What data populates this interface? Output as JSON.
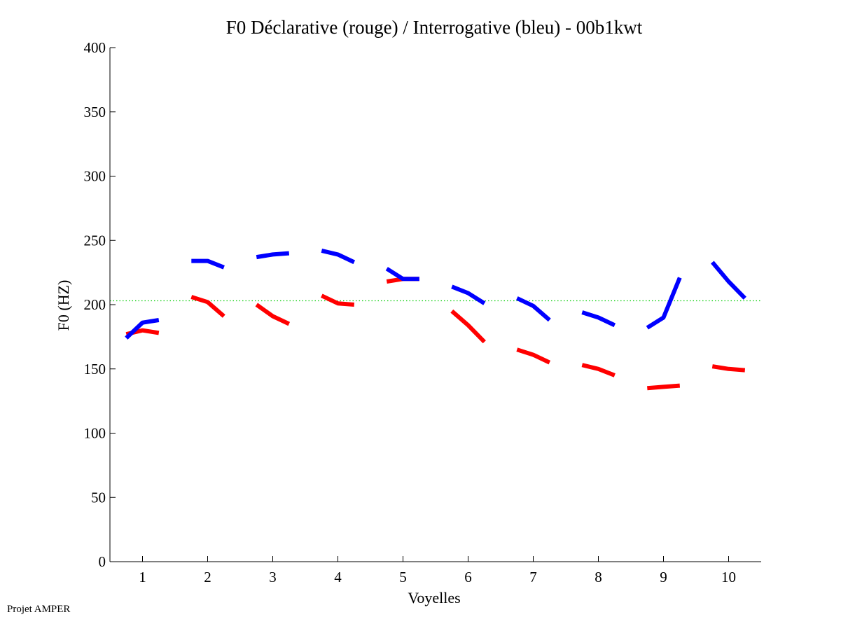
{
  "chart_data": {
    "type": "line",
    "title": "F0 Déclarative (rouge) / Interrogative (bleu) - 00b1kwt",
    "xlabel": "Voyelles",
    "ylabel": "F0 (HZ)",
    "xlim": [
      0.5,
      10.5
    ],
    "ylim": [
      0,
      400
    ],
    "xticks": [
      "1",
      "2",
      "3",
      "4",
      "5",
      "6",
      "7",
      "8",
      "9",
      "10"
    ],
    "yticks": [
      "0",
      "50",
      "100",
      "150",
      "200",
      "250",
      "300",
      "350",
      "400"
    ],
    "reference_line": {
      "y": 203,
      "color": "#00cc00",
      "style": "dotted"
    },
    "grid": false,
    "series": [
      {
        "color": "#ff0000",
        "segments": [
          {
            "x": [
              0.75,
              1.0,
              1.25
            ],
            "y": [
              177,
              180,
              178
            ]
          },
          {
            "x": [
              1.75,
              2.0,
              2.25
            ],
            "y": [
              206,
              202,
              191
            ]
          },
          {
            "x": [
              2.75,
              3.0,
              3.25
            ],
            "y": [
              200,
              191,
              185
            ]
          },
          {
            "x": [
              3.75,
              4.0,
              4.25
            ],
            "y": [
              207,
              201,
              200
            ]
          },
          {
            "x": [
              4.75,
              5.0,
              5.25
            ],
            "y": [
              218,
              220,
              220
            ]
          },
          {
            "x": [
              5.75,
              6.0,
              6.25
            ],
            "y": [
              195,
              184,
              171
            ]
          },
          {
            "x": [
              6.75,
              7.0,
              7.25
            ],
            "y": [
              165,
              161,
              155
            ]
          },
          {
            "x": [
              7.75,
              8.0,
              8.25
            ],
            "y": [
              153,
              150,
              145
            ]
          },
          {
            "x": [
              8.75,
              9.0,
              9.25
            ],
            "y": [
              135,
              136,
              137
            ]
          },
          {
            "x": [
              9.75,
              10.0,
              10.25
            ],
            "y": [
              152,
              150,
              149
            ]
          }
        ]
      },
      {
        "color": "#0000ff",
        "segments": [
          {
            "x": [
              0.75,
              1.0,
              1.25
            ],
            "y": [
              174,
              186,
              188
            ]
          },
          {
            "x": [
              1.75,
              2.0,
              2.25
            ],
            "y": [
              234,
              234,
              229
            ]
          },
          {
            "x": [
              2.75,
              3.0,
              3.25
            ],
            "y": [
              237,
              239,
              240
            ]
          },
          {
            "x": [
              3.75,
              4.0,
              4.25
            ],
            "y": [
              242,
              239,
              233
            ]
          },
          {
            "x": [
              4.75,
              5.0,
              5.25
            ],
            "y": [
              228,
              220,
              220
            ]
          },
          {
            "x": [
              5.75,
              6.0,
              6.25
            ],
            "y": [
              214,
              209,
              201
            ]
          },
          {
            "x": [
              6.75,
              7.0,
              7.25
            ],
            "y": [
              205,
              199,
              188
            ]
          },
          {
            "x": [
              7.75,
              8.0,
              8.25
            ],
            "y": [
              194,
              190,
              184
            ]
          },
          {
            "x": [
              8.75,
              9.0,
              9.25
            ],
            "y": [
              182,
              190,
              221
            ]
          },
          {
            "x": [
              9.75,
              10.0,
              10.25
            ],
            "y": [
              233,
              218,
              205
            ]
          }
        ]
      }
    ]
  },
  "footer": {
    "text": "Projet AMPER"
  }
}
